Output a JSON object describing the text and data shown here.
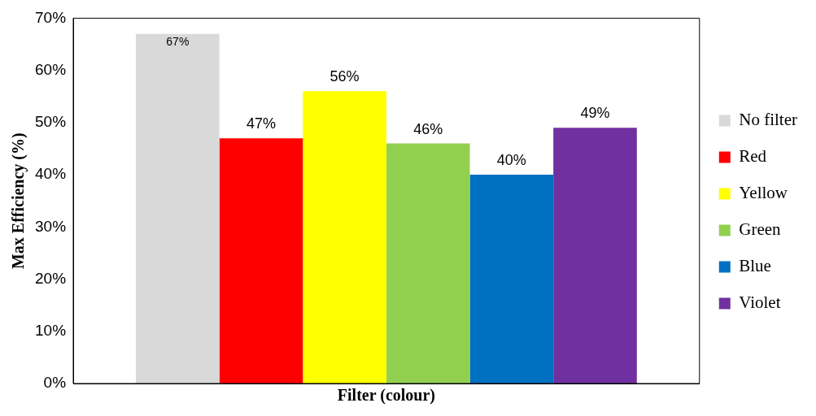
{
  "chart_data": {
    "type": "bar",
    "xlabel": "Filter (colour)",
    "ylabel": "Max Efficiency (%)",
    "categories": [
      null
    ],
    "series": [
      {
        "name": "No filter",
        "color": "#d9d9d9",
        "values": [
          67
        ],
        "value_labels": [
          "67%"
        ]
      },
      {
        "name": "Red",
        "color": "#ff0000",
        "values": [
          47
        ],
        "value_labels": [
          "47%"
        ]
      },
      {
        "name": "Yellow",
        "color": "#ffff00",
        "values": [
          56
        ],
        "value_labels": [
          "56%"
        ]
      },
      {
        "name": "Green",
        "color": "#92d050",
        "values": [
          46
        ],
        "value_labels": [
          "46%"
        ]
      },
      {
        "name": "Blue",
        "color": "#0070c0",
        "values": [
          40
        ],
        "value_labels": [
          "40%"
        ]
      },
      {
        "name": "Violet",
        "color": "#7030a0",
        "values": [
          49
        ],
        "value_labels": [
          "49%"
        ]
      }
    ],
    "ylim": [
      0,
      70
    ],
    "yticks": [
      {
        "value": 0,
        "label": "0%"
      },
      {
        "value": 10,
        "label": "10%"
      },
      {
        "value": 20,
        "label": "20%"
      },
      {
        "value": 30,
        "label": "30%"
      },
      {
        "value": 40,
        "label": "40%"
      },
      {
        "value": 50,
        "label": "50%"
      },
      {
        "value": 60,
        "label": "60%"
      },
      {
        "value": 70,
        "label": "70%"
      }
    ],
    "grid": false,
    "legend": "right"
  }
}
